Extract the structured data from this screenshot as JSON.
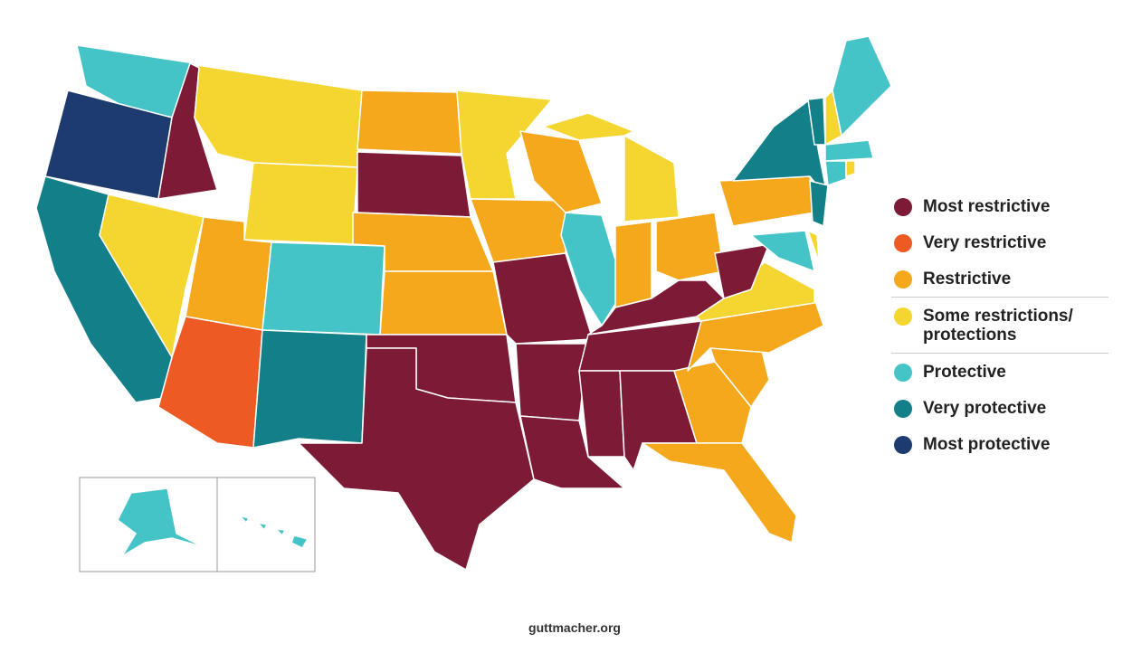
{
  "legend": {
    "items": [
      {
        "label": "Most restrictive",
        "color": "#7d1a36"
      },
      {
        "label": "Very restrictive",
        "color": "#ee5a24"
      },
      {
        "label": "Restrictive",
        "color": "#f5a81c"
      },
      {
        "label": "Some restrictions/ protections",
        "color": "#f5d631"
      },
      {
        "label": "Protective",
        "color": "#45c4c8"
      },
      {
        "label": "Very protective",
        "color": "#138089"
      },
      {
        "label": "Most protective",
        "color": "#1d3b6e"
      }
    ]
  },
  "source": "guttmacher.org"
}
